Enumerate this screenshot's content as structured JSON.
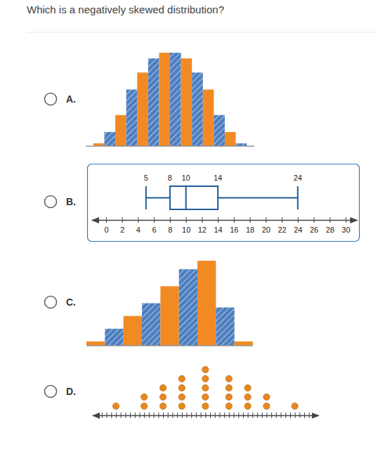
{
  "question": "Which is a negatively skewed distribution?",
  "options": [
    "A.",
    "B.",
    "C.",
    "D."
  ],
  "chart_data": [
    {
      "type": "histogram",
      "bins": [
        0,
        1,
        2,
        3,
        4,
        5,
        6,
        7,
        8,
        9,
        10,
        11,
        12,
        13,
        14
      ],
      "values": [
        1,
        5,
        11,
        20,
        26,
        31,
        33,
        33,
        31,
        26,
        20,
        11,
        5,
        1
      ],
      "colors": [
        "#f28a24",
        "#4d7fc0",
        "#f28a24",
        "#4d7fc0",
        "#f28a24",
        "#4d7fc0",
        "#f28a24",
        "#4d7fc0",
        "#f28a24",
        "#4d7fc0",
        "#f28a24",
        "#4d7fc0",
        "#f28a24",
        "#4d7fc0"
      ],
      "xlim": [
        -0.7,
        14.7
      ],
      "ylim": [
        0,
        35
      ]
    },
    {
      "type": "box",
      "min": 5,
      "q1": 8,
      "median": 10,
      "q3": 14,
      "max": 24,
      "color": "#1f5c99",
      "data_labels": true,
      "xlim": [
        -1.8,
        31.4
      ],
      "xticks": [
        0,
        2,
        4,
        6,
        8,
        10,
        12,
        14,
        16,
        18,
        20,
        22,
        24,
        26,
        28,
        30
      ]
    },
    {
      "type": "histogram",
      "bins": [
        0,
        1,
        2,
        3,
        4,
        5,
        6,
        7,
        8,
        9
      ],
      "values": [
        1,
        4,
        7,
        10,
        14,
        18,
        20,
        9,
        1
      ],
      "colors": [
        "#f28a24",
        "#4d7fc0",
        "#f28a24",
        "#4d7fc0",
        "#f28a24",
        "#4d7fc0",
        "#f28a24",
        "#4d7fc0",
        "#f28a24"
      ],
      "xlim": [
        0,
        9
      ],
      "ylim": [
        0,
        22
      ]
    },
    {
      "type": "dot",
      "x": [
        5,
        11,
        15,
        19,
        24,
        29,
        33,
        37,
        43
      ],
      "values": [
        1,
        2,
        3,
        4,
        5,
        4,
        3,
        2,
        1
      ],
      "color": "#e8891e",
      "xlim": [
        0,
        48
      ],
      "ylim": [
        0,
        6
      ],
      "xticks": [
        2,
        3,
        4,
        5,
        6,
        7,
        8,
        9,
        10,
        11,
        12,
        13,
        14,
        15,
        16,
        17,
        18,
        19,
        20,
        21,
        22,
        23,
        24,
        25,
        26,
        27,
        28,
        29,
        30,
        31,
        32,
        33,
        34,
        35,
        36,
        37,
        38,
        39,
        40,
        41,
        42,
        43,
        44,
        45,
        46
      ],
      "tick_labels": false
    }
  ]
}
